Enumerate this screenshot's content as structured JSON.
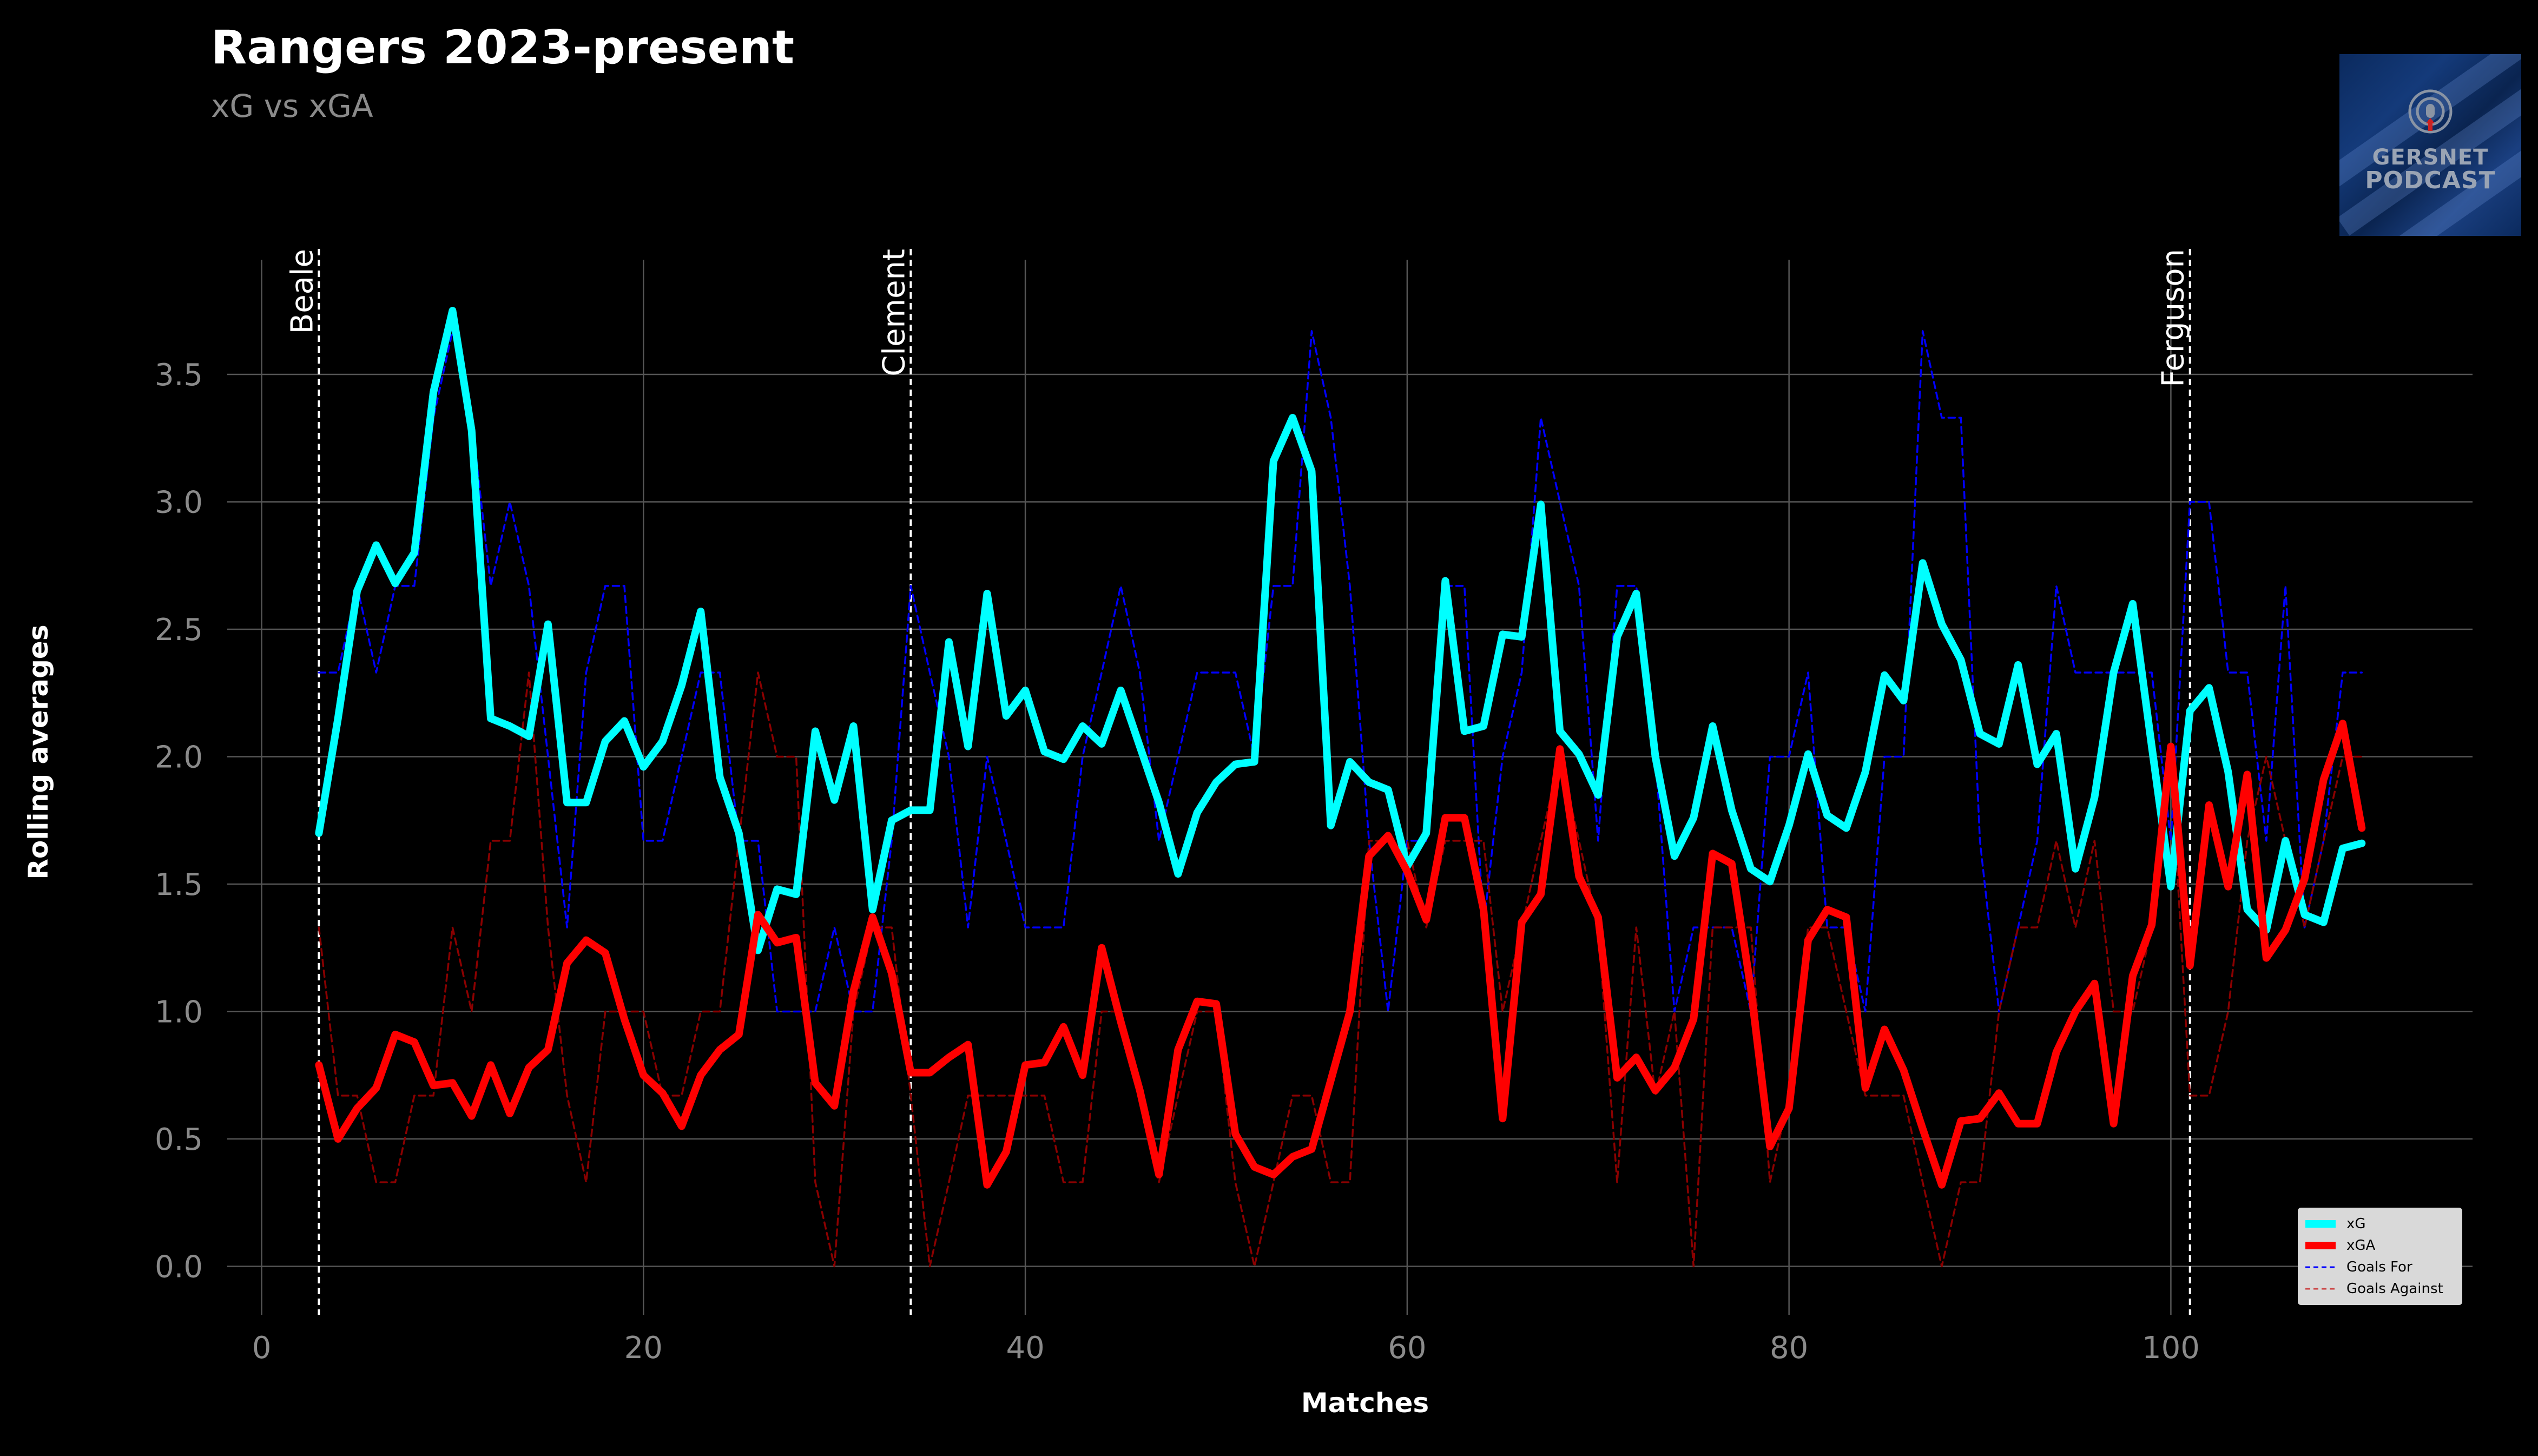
{
  "title": "Rangers 2023-present",
  "subtitle": "xG vs xGA",
  "logo": {
    "line1": "GERSNET",
    "line2": "PODCAST",
    "icon": "podcast-microphone-icon"
  },
  "colors": {
    "background": "#000000",
    "xg": "#00ffff",
    "xga": "#ff0000",
    "goals_for": "#0000ff",
    "goals_against": "#8b0000",
    "grid": "#555555",
    "tick_text": "#8a8a8a"
  },
  "chart_data": {
    "type": "line",
    "title": "Rangers 2023-present",
    "subtitle": "xG vs xGA",
    "xlabel": "Matches",
    "ylabel": "Rolling averages",
    "xlim": [
      -1.8,
      115.8
    ],
    "ylim": [
      -0.19,
      3.95
    ],
    "xticks": [
      0,
      20,
      40,
      60,
      80,
      100
    ],
    "yticks": [
      0.0,
      0.5,
      1.0,
      1.5,
      2.0,
      2.5,
      3.0,
      3.5
    ],
    "ytick_labels": [
      "0.0",
      "0.5",
      "1.0",
      "1.5",
      "2.0",
      "2.5",
      "3.0",
      "3.5"
    ],
    "grid": true,
    "legend_position": "lower-right",
    "annotations": [
      {
        "x": 3,
        "label": "Beale"
      },
      {
        "x": 34,
        "label": "Clement"
      },
      {
        "x": 101,
        "label": "Ferguson"
      }
    ],
    "x_start": 3,
    "series": [
      {
        "name": "xG",
        "style": "solid",
        "values": [
          1.7,
          2.15,
          2.65,
          2.83,
          2.68,
          2.8,
          3.43,
          3.75,
          3.28,
          2.15,
          2.12,
          2.08,
          2.52,
          1.82,
          1.82,
          2.06,
          2.14,
          1.96,
          2.06,
          2.28,
          2.57,
          1.92,
          1.7,
          1.24,
          1.48,
          1.46,
          2.1,
          1.83,
          2.12,
          1.4,
          1.75,
          1.79,
          1.79,
          2.45,
          2.04,
          2.64,
          2.16,
          2.26,
          2.02,
          1.99,
          2.12,
          2.05,
          2.26,
          2.04,
          1.82,
          1.54,
          1.78,
          1.9,
          1.97,
          1.98,
          3.16,
          3.33,
          3.12,
          1.73,
          1.98,
          1.9,
          1.87,
          1.57,
          1.7,
          2.69,
          2.1,
          2.12,
          2.48,
          2.47,
          2.99,
          2.1,
          2.01,
          1.85,
          2.47,
          2.64,
          2.0,
          1.61,
          1.76,
          2.12,
          1.79,
          1.56,
          1.51,
          1.73,
          2.01,
          1.77,
          1.72,
          1.94,
          2.32,
          2.22,
          2.76,
          2.52,
          2.38,
          2.09,
          2.05,
          2.36,
          1.97,
          2.09,
          1.56,
          1.84,
          2.33,
          2.6,
          2.04,
          1.49,
          2.18,
          2.27,
          1.94,
          1.4,
          1.32,
          1.67,
          1.38,
          1.35,
          1.64,
          1.66
        ]
      },
      {
        "name": "xGA",
        "style": "solid",
        "values": [
          0.79,
          0.5,
          0.62,
          0.7,
          0.91,
          0.88,
          0.71,
          0.72,
          0.59,
          0.79,
          0.6,
          0.78,
          0.85,
          1.19,
          1.28,
          1.23,
          0.97,
          0.75,
          0.68,
          0.55,
          0.75,
          0.85,
          0.91,
          1.38,
          1.27,
          1.29,
          0.72,
          0.63,
          1.08,
          1.37,
          1.15,
          0.76,
          0.76,
          0.82,
          0.87,
          0.32,
          0.45,
          0.79,
          0.8,
          0.94,
          0.75,
          1.25,
          0.96,
          0.69,
          0.36,
          0.85,
          1.04,
          1.03,
          0.52,
          0.39,
          0.36,
          0.43,
          0.46,
          0.73,
          1.0,
          1.61,
          1.69,
          1.55,
          1.36,
          1.76,
          1.76,
          1.4,
          0.58,
          1.35,
          1.46,
          2.03,
          1.53,
          1.37,
          0.74,
          0.82,
          0.69,
          0.78,
          0.97,
          1.62,
          1.58,
          1.09,
          0.47,
          0.62,
          1.28,
          1.4,
          1.37,
          0.7,
          0.93,
          0.77,
          0.54,
          0.32,
          0.57,
          0.58,
          0.68,
          0.56,
          0.56,
          0.84,
          1.0,
          1.11,
          0.56,
          1.14,
          1.34,
          2.04,
          1.18,
          1.81,
          1.49,
          1.93,
          1.21,
          1.32,
          1.52,
          1.91,
          2.13,
          1.72
        ]
      },
      {
        "name": "Goals For",
        "style": "dashed",
        "values": [
          2.33,
          2.33,
          2.67,
          2.33,
          2.67,
          2.67,
          3.33,
          3.67,
          3.33,
          2.67,
          3.0,
          2.67,
          2.0,
          1.33,
          2.33,
          2.67,
          2.67,
          1.67,
          1.67,
          2.0,
          2.33,
          2.33,
          1.67,
          1.67,
          1.0,
          1.0,
          1.0,
          1.33,
          1.0,
          1.0,
          1.67,
          2.67,
          2.33,
          2.0,
          1.33,
          2.0,
          1.67,
          1.33,
          1.33,
          1.33,
          2.0,
          2.33,
          2.67,
          2.33,
          1.67,
          2.0,
          2.33,
          2.33,
          2.33,
          2.0,
          2.67,
          2.67,
          3.67,
          3.33,
          2.67,
          1.67,
          1.0,
          1.67,
          1.67,
          2.67,
          2.67,
          1.33,
          2.0,
          2.33,
          3.33,
          3.0,
          2.67,
          1.67,
          2.67,
          2.67,
          2.0,
          1.0,
          1.33,
          1.33,
          1.33,
          1.0,
          2.0,
          2.0,
          2.33,
          1.33,
          1.33,
          1.0,
          2.0,
          2.0,
          3.67,
          3.33,
          3.33,
          1.67,
          1.0,
          1.33,
          1.67,
          2.67,
          2.33,
          2.33,
          2.33,
          2.33,
          2.33,
          1.67,
          3.0,
          3.0,
          2.33,
          2.33,
          1.67,
          2.67,
          1.33,
          1.67,
          2.33,
          2.33
        ]
      },
      {
        "name": "Goals Against",
        "style": "dashed",
        "values": [
          1.33,
          0.67,
          0.67,
          0.33,
          0.33,
          0.67,
          0.67,
          1.33,
          1.0,
          1.67,
          1.67,
          2.33,
          1.33,
          0.67,
          0.33,
          1.0,
          1.0,
          1.0,
          0.67,
          0.67,
          1.0,
          1.0,
          1.67,
          2.33,
          2.0,
          2.0,
          0.33,
          0.0,
          1.0,
          1.33,
          1.33,
          0.67,
          0.0,
          0.33,
          0.67,
          0.67,
          0.67,
          0.67,
          0.67,
          0.33,
          0.33,
          1.0,
          1.0,
          0.67,
          0.33,
          0.67,
          1.0,
          1.0,
          0.33,
          0.0,
          0.33,
          0.67,
          0.67,
          0.33,
          0.33,
          1.67,
          1.67,
          1.67,
          1.33,
          1.67,
          1.67,
          1.67,
          1.0,
          1.33,
          1.67,
          2.0,
          1.67,
          1.33,
          0.33,
          1.33,
          0.67,
          1.0,
          0.0,
          1.33,
          1.33,
          1.33,
          0.33,
          0.67,
          1.33,
          1.33,
          1.0,
          0.67,
          0.67,
          0.67,
          0.33,
          0.0,
          0.33,
          0.33,
          1.0,
          1.33,
          1.33,
          1.67,
          1.33,
          1.67,
          1.0,
          1.0,
          1.33,
          2.0,
          0.67,
          0.67,
          1.0,
          1.67,
          2.0,
          1.67,
          1.33,
          1.67,
          2.0,
          2.0
        ]
      }
    ]
  }
}
